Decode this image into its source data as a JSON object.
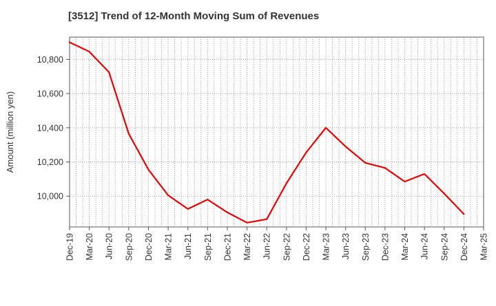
{
  "chart_data": {
    "type": "line",
    "title": "[3512]  Trend of 12-Month Moving Sum of Revenues",
    "xlabel": "",
    "ylabel": "Amount (million yen)",
    "ylim": [
      9820,
      10930
    ],
    "y_ticks": [
      10000,
      10200,
      10400,
      10600,
      10800
    ],
    "y_tick_labels": [
      "10,000",
      "10,200",
      "10,400",
      "10,600",
      "10,800"
    ],
    "x_tick_labels": [
      "Dec-19",
      "Mar-20",
      "Jun-20",
      "Sep-20",
      "Dec-20",
      "Mar-21",
      "Jun-21",
      "Sep-21",
      "Dec-21",
      "Mar-22",
      "Jun-22",
      "Sep-22",
      "Dec-22",
      "Mar-23",
      "Jun-23",
      "Sep-23",
      "Dec-23",
      "Mar-24",
      "Jun-24",
      "Sep-24",
      "Dec-24",
      "Mar-25"
    ],
    "grid": true,
    "legend": "none",
    "series": [
      {
        "color": "#e60000",
        "x": [
          "Dec-19",
          "Mar-20",
          "Jun-20",
          "Sep-20",
          "Dec-20",
          "Mar-21",
          "Jun-21",
          "Sep-21",
          "Dec-21",
          "Mar-22",
          "Jun-22",
          "Sep-22",
          "Dec-22",
          "Mar-23",
          "Jun-23",
          "Sep-23",
          "Dec-23",
          "Mar-24",
          "Jun-24",
          "Sep-24",
          "Dec-24"
        ],
        "values": [
          10900,
          10845,
          10725,
          10365,
          10155,
          10005,
          9925,
          9980,
          9905,
          9845,
          9865,
          10075,
          10255,
          10400,
          10290,
          10195,
          10165,
          10085,
          10130,
          10015,
          9895
        ]
      }
    ]
  }
}
